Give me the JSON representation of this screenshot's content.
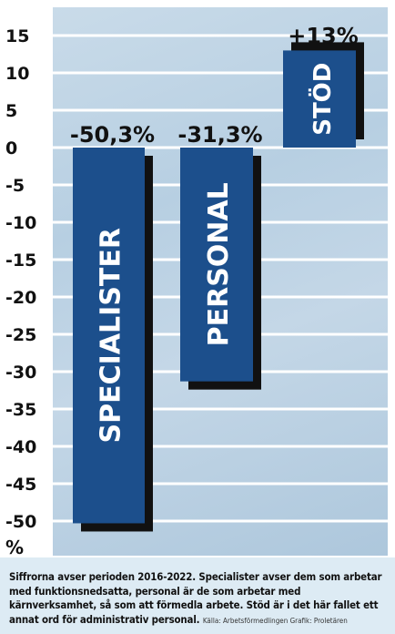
{
  "chart_data": {
    "type": "bar",
    "categories": [
      "SPECIALISTER",
      "PERSONAL",
      "STÖD"
    ],
    "values": [
      -50.3,
      -31.3,
      13
    ],
    "data_labels": [
      "-50,3%",
      "-31,3%",
      "+13%"
    ],
    "y_ticks": [
      "15",
      "10",
      "5",
      "0",
      "-5",
      "-10",
      "-15",
      "-20",
      "-25",
      "-30",
      "-35",
      "-40",
      "-45",
      "-50"
    ],
    "y_unit": "%",
    "ylim": [
      -53,
      18
    ],
    "grid": true,
    "bar_color": "#1c4f8c",
    "shadow_color": "#111111",
    "label_color": "#ffffff"
  },
  "caption": {
    "text": "Siffrorna avser perioden 2016-2022. Specialister avser dem som arbetar med funktionsnedsatta, personal är de som arbetar med kärnverksamhet, så som att förmedla arbete. Stöd är i det här fallet ett annat ord för administrativ personal.",
    "source": "Källa: Arbetsförmedlingen Grafik: Proletären"
  }
}
